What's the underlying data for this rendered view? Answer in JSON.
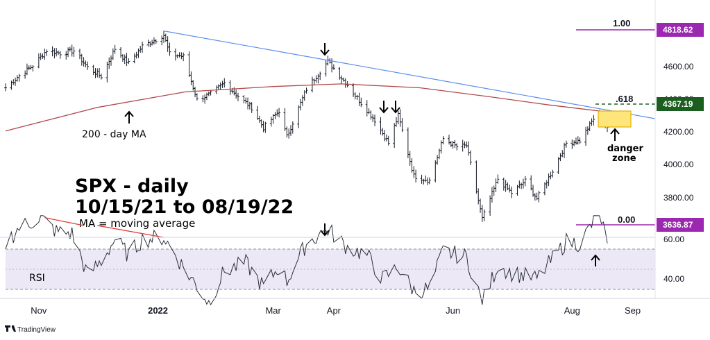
{
  "chart_data": [
    {
      "type": "ohlc",
      "symbol": "SPX",
      "title": "SPX - daily",
      "subtitle": "10/15/21 to 08/19/22",
      "note": "MA = moving average",
      "y_ticks": [
        "4600.00",
        "4200.00",
        "4000.00",
        "3800.00"
      ],
      "ylim": [
        3580,
        4880
      ],
      "price_points": [
        [
          "2021-10-15",
          4470
        ],
        [
          "2021-10-22",
          4545
        ],
        [
          "2021-10-29",
          4605
        ],
        [
          "2021-11-05",
          4700
        ],
        [
          "2021-11-12",
          4682
        ],
        [
          "2021-11-19",
          4697
        ],
        [
          "2021-11-26",
          4595
        ],
        [
          "2021-12-03",
          4540
        ],
        [
          "2021-12-10",
          4710
        ],
        [
          "2021-12-17",
          4620
        ],
        [
          "2021-12-24",
          4725
        ],
        [
          "2021-12-31",
          4766
        ],
        [
          "2022-01-04",
          4793
        ],
        [
          "2022-01-07",
          4677
        ],
        [
          "2022-01-14",
          4662
        ],
        [
          "2022-01-21",
          4398
        ],
        [
          "2022-01-28",
          4432
        ],
        [
          "2022-02-04",
          4500
        ],
        [
          "2022-02-11",
          4418
        ],
        [
          "2022-02-18",
          4348
        ],
        [
          "2022-02-24",
          4225
        ],
        [
          "2022-03-04",
          4328
        ],
        [
          "2022-03-08",
          4170
        ],
        [
          "2022-03-18",
          4463
        ],
        [
          "2022-03-29",
          4631
        ],
        [
          "2022-04-08",
          4488
        ],
        [
          "2022-04-14",
          4392
        ],
        [
          "2022-04-22",
          4272
        ],
        [
          "2022-04-29",
          4131
        ],
        [
          "2022-05-04",
          4300
        ],
        [
          "2022-05-12",
          3930
        ],
        [
          "2022-05-20",
          3901
        ],
        [
          "2022-05-27",
          4158
        ],
        [
          "2022-06-03",
          4108
        ],
        [
          "2022-06-08",
          4115
        ],
        [
          "2022-06-16",
          3666
        ],
        [
          "2022-06-24",
          3911
        ],
        [
          "2022-07-01",
          3825
        ],
        [
          "2022-07-08",
          3899
        ],
        [
          "2022-07-14",
          3790
        ],
        [
          "2022-07-22",
          3962
        ],
        [
          "2022-07-29",
          4130
        ],
        [
          "2022-08-05",
          4145
        ],
        [
          "2022-08-12",
          4280
        ],
        [
          "2022-08-16",
          4305
        ],
        [
          "2022-08-19",
          4228
        ]
      ],
      "trendline": {
        "from": [
          "2022-01-04",
          4818.62
        ],
        "to": [
          "2022-09-01",
          4265
        ]
      },
      "ma200": {
        "label": "200 - day MA",
        "points": [
          [
            "2021-10-15",
            4205
          ],
          [
            "2021-12-01",
            4350
          ],
          [
            "2022-01-15",
            4445
          ],
          [
            "2022-03-01",
            4478
          ],
          [
            "2022-04-05",
            4494
          ],
          [
            "2022-05-15",
            4470
          ],
          [
            "2022-06-20",
            4415
          ],
          [
            "2022-07-20",
            4365
          ],
          [
            "2022-08-19",
            4322
          ]
        ]
      },
      "fibonacci": [
        {
          "level": "1.00",
          "price": "4818.62",
          "color": "#9c27b0"
        },
        {
          "level": "0.00",
          "price": "3636.87",
          "color": "#9c27b0"
        },
        {
          "level": ".618",
          "price": "4367.19",
          "color": "#1b5e20"
        }
      ],
      "danger_zone": {
        "label": "danger",
        "label2": "zone",
        "color": "#ffe67a",
        "from": "2022-08-15",
        "to": "2022-08-31",
        "price_low": 4250,
        "price_high": 4320
      },
      "arrow_dates": [
        "2022-03-29",
        "2022-04-21",
        "2022-04-25"
      ]
    },
    {
      "type": "line",
      "name": "RSI",
      "y_ticks": [
        "60.00",
        "40.00"
      ],
      "ylim": [
        26,
        82
      ],
      "bands": {
        "upper": 70,
        "lower": 30,
        "mid": 50
      },
      "values": [
        [
          "2021-10-15",
          58
        ],
        [
          "2021-10-22",
          66
        ],
        [
          "2021-11-02",
          71
        ],
        [
          "2021-11-10",
          64
        ],
        [
          "2021-11-18",
          63
        ],
        [
          "2021-11-26",
          42
        ],
        [
          "2021-12-03",
          49
        ],
        [
          "2021-12-10",
          60
        ],
        [
          "2021-12-17",
          52
        ],
        [
          "2021-12-24",
          60
        ],
        [
          "2022-01-04",
          61
        ],
        [
          "2022-01-14",
          46
        ],
        [
          "2022-01-27",
          28
        ],
        [
          "2022-02-04",
          44
        ],
        [
          "2022-02-15",
          48
        ],
        [
          "2022-02-24",
          36
        ],
        [
          "2022-03-04",
          46
        ],
        [
          "2022-03-08",
          39
        ],
        [
          "2022-03-18",
          58
        ],
        [
          "2022-03-29",
          65
        ],
        [
          "2022-04-08",
          56
        ],
        [
          "2022-04-18",
          52
        ],
        [
          "2022-04-26",
          40
        ],
        [
          "2022-05-04",
          46
        ],
        [
          "2022-05-12",
          34
        ],
        [
          "2022-05-20",
          35
        ],
        [
          "2022-05-27",
          54
        ],
        [
          "2022-06-08",
          51
        ],
        [
          "2022-06-16",
          28
        ],
        [
          "2022-06-24",
          47
        ],
        [
          "2022-07-01",
          43
        ],
        [
          "2022-07-14",
          40
        ],
        [
          "2022-07-22",
          50
        ],
        [
          "2022-07-29",
          59
        ],
        [
          "2022-08-05",
          58
        ],
        [
          "2022-08-12",
          69
        ],
        [
          "2022-08-16",
          70
        ],
        [
          "2022-08-19",
          58
        ]
      ],
      "divergence_lines": [
        {
          "from": [
            "2021-11-04",
            71
          ],
          "to": [
            "2021-11-24",
            67
          ]
        },
        {
          "from": [
            "2021-12-01",
            67
          ],
          "to": [
            "2022-01-04",
            61
          ]
        }
      ]
    }
  ],
  "x_axis": {
    "months": [
      {
        "label": "Nov",
        "date": "2021-11-01"
      },
      {
        "label": "2022",
        "date": "2022-01-01"
      },
      {
        "label": "Mar",
        "date": "2022-03-01"
      },
      {
        "label": "Apr",
        "date": "2022-04-01"
      },
      {
        "label": "Jun",
        "date": "2022-06-01"
      },
      {
        "label": "Aug",
        "date": "2022-08-01"
      },
      {
        "label": "Sep",
        "date": "2022-09-01"
      }
    ]
  },
  "text": {
    "title": "SPX - daily",
    "subtitle": "10/15/21 to 08/19/22",
    "note": "MA = moving average",
    "ma_label": "200 - day MA",
    "danger_1": "danger",
    "danger_2": "zone",
    "rsi_label": "RSI",
    "brand": "TradingView",
    "fib_1": "1.00",
    "fib_0": "0.00",
    "fib_618": ".618",
    "tag_1": "4818.62",
    "tag_0": "3636.87",
    "tag_618": "4367.19"
  },
  "colors": {
    "trendline": "#5b8def",
    "ma": "#b2484a",
    "rsi": "#2a2e39",
    "rsi_band": "#ece8f6",
    "divergence": "#e03b3b",
    "fib": "#9c27b0",
    "fib618": "#1b5e20",
    "zone": "#ffe67a"
  }
}
